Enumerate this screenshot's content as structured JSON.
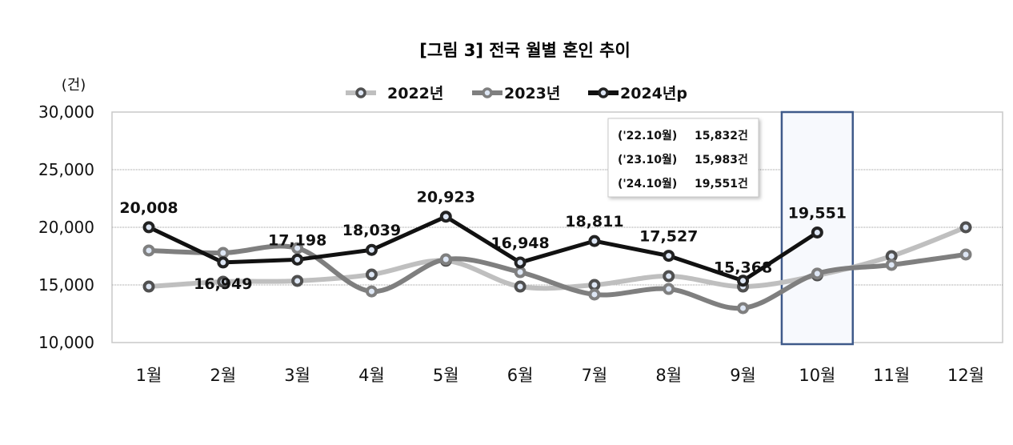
{
  "chart_data": {
    "type": "line",
    "title": "[그림 3] 전국 월별 혼인 추이",
    "ylabel": "(건)",
    "xlabel": "",
    "ylim": [
      10000,
      30000
    ],
    "yticks": [
      10000,
      15000,
      20000,
      25000,
      30000
    ],
    "ytick_labels": [
      "10,000",
      "15,000",
      "20,000",
      "25,000",
      "30,000"
    ],
    "grid": true,
    "legend_position": "top-center",
    "categories": [
      "1월",
      "2월",
      "3월",
      "4월",
      "5월",
      "6월",
      "7월",
      "8월",
      "9월",
      "10월",
      "11월",
      "12월"
    ],
    "series": [
      {
        "name": "2022년",
        "color": "#bfbfbf",
        "marker": "#505050",
        "smooth": true,
        "values": [
          14860,
          15280,
          15350,
          15900,
          17100,
          14860,
          15000,
          15760,
          14860,
          15832,
          17500,
          20000
        ]
      },
      {
        "name": "2023년",
        "color": "#7f7f7f",
        "marker": "#7f7f7f",
        "smooth": true,
        "values": [
          17990,
          17780,
          18190,
          14440,
          17220,
          16110,
          14170,
          14650,
          12990,
          15983,
          16740,
          17640
        ]
      },
      {
        "name": "2024년p",
        "color": "#111111",
        "marker": "#222222",
        "smooth": false,
        "values": [
          20008,
          16949,
          17198,
          18039,
          20923,
          16948,
          18811,
          17527,
          15368,
          19551,
          null,
          null
        ],
        "data_labels": [
          "20,008",
          "16,949",
          "17,198",
          "18,039",
          "20,923",
          "16,948",
          "18,811",
          "17,527",
          "15,368",
          "19,551"
        ]
      }
    ],
    "highlight_category": "10월",
    "highlight_color": "#3f5a8a",
    "annotation": [
      {
        "period": "('22.10월)",
        "value": "15,832건"
      },
      {
        "period": "('23.10월)",
        "value": "15,983건"
      },
      {
        "period": "('24.10월)",
        "value": "19,551건"
      }
    ]
  }
}
